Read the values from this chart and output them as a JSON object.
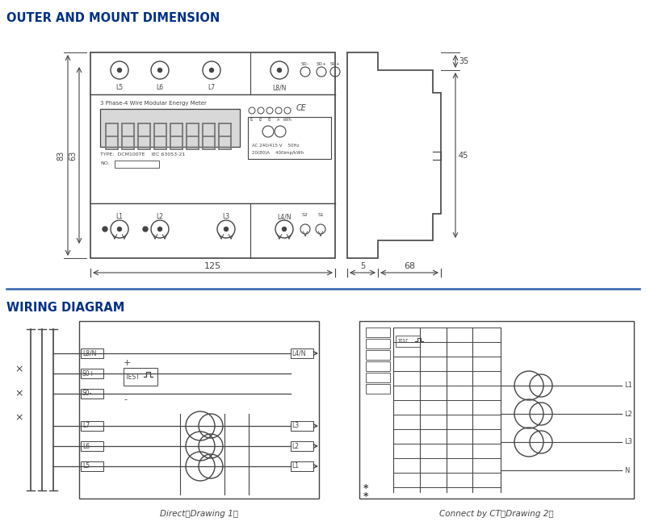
{
  "title1": "OUTER AND MOUNT DIMENSION",
  "title2": "WIRING DIAGRAM",
  "title1_color": "#003087",
  "title2_color": "#003087",
  "bg_color": "#ffffff",
  "line_color": "#444444",
  "dim_color": "#444444",
  "caption1": "Direct（Drawing 1）",
  "caption2": "Connect by CT（Drawing 2）",
  "dim_125": "125",
  "dim_68": "68",
  "dim_5": "5",
  "dim_35": "35",
  "dim_45": "45",
  "dim_83": "83",
  "dim_63": "63"
}
